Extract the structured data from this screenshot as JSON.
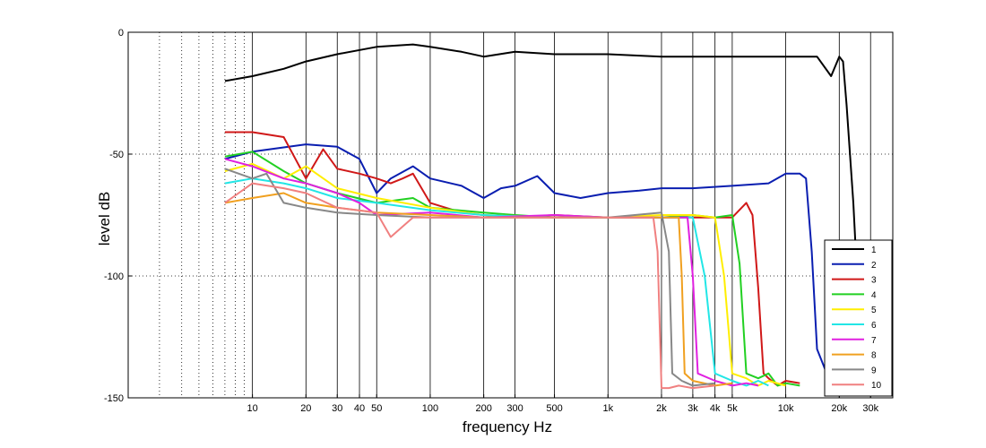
{
  "chart_data": {
    "type": "line",
    "xscale": "log",
    "xlim": [
      2,
      40000
    ],
    "ylim": [
      -150,
      0
    ],
    "xlabel": "frequency   Hz",
    "ylabel": "level dB",
    "xticks": [
      {
        "value": 10,
        "label": "10"
      },
      {
        "value": 20,
        "label": "20"
      },
      {
        "value": 30,
        "label": "30"
      },
      {
        "value": 40,
        "label": "40"
      },
      {
        "value": 50,
        "label": "50"
      },
      {
        "value": 100,
        "label": "100"
      },
      {
        "value": 200,
        "label": "200"
      },
      {
        "value": 300,
        "label": "300"
      },
      {
        "value": 500,
        "label": "500"
      },
      {
        "value": 1000,
        "label": "1k"
      },
      {
        "value": 2000,
        "label": "2k"
      },
      {
        "value": 3000,
        "label": "3k"
      },
      {
        "value": 4000,
        "label": "4k"
      },
      {
        "value": 5000,
        "label": "5k"
      },
      {
        "value": 10000,
        "label": "10k"
      },
      {
        "value": 20000,
        "label": "20k"
      },
      {
        "value": 30000,
        "label": "30k"
      }
    ],
    "xgrid_solid": [
      10,
      20,
      30,
      40,
      50,
      100,
      200,
      300,
      500,
      1000,
      2000,
      3000,
      4000,
      5000,
      10000,
      20000,
      30000
    ],
    "xgrid_dotted": [
      3,
      4,
      5,
      6,
      7,
      8,
      9
    ],
    "yticks": [
      {
        "value": 0,
        "label": "0"
      },
      {
        "value": -50,
        "label": "-50"
      },
      {
        "value": -100,
        "label": "-100"
      },
      {
        "value": -150,
        "label": "-150"
      }
    ],
    "ygrid_dotted": [
      -50,
      -100
    ],
    "grid": true,
    "legend": {
      "position": "bottom-right"
    },
    "series": [
      {
        "name": "1",
        "color": "#000000",
        "points": [
          [
            7,
            -20
          ],
          [
            10,
            -18
          ],
          [
            15,
            -15
          ],
          [
            20,
            -12
          ],
          [
            30,
            -9
          ],
          [
            50,
            -6
          ],
          [
            80,
            -5
          ],
          [
            100,
            -6
          ],
          [
            150,
            -8
          ],
          [
            200,
            -10
          ],
          [
            300,
            -8
          ],
          [
            500,
            -9
          ],
          [
            1000,
            -9
          ],
          [
            2000,
            -10
          ],
          [
            3000,
            -10
          ],
          [
            5000,
            -10
          ],
          [
            10000,
            -10
          ],
          [
            15000,
            -10
          ],
          [
            18000,
            -18
          ],
          [
            20000,
            -10
          ],
          [
            21000,
            -12
          ],
          [
            22000,
            -30
          ],
          [
            24000,
            -70
          ],
          [
            26000,
            -120
          ],
          [
            30000,
            -130
          ],
          [
            35000,
            -135
          ],
          [
            40000,
            -137
          ]
        ]
      },
      {
        "name": "2",
        "color": "#0a1eb0",
        "points": [
          [
            7,
            -52
          ],
          [
            10,
            -49
          ],
          [
            20,
            -46
          ],
          [
            30,
            -47
          ],
          [
            40,
            -52
          ],
          [
            50,
            -66
          ],
          [
            60,
            -60
          ],
          [
            80,
            -55
          ],
          [
            100,
            -60
          ],
          [
            150,
            -63
          ],
          [
            200,
            -68
          ],
          [
            250,
            -64
          ],
          [
            300,
            -63
          ],
          [
            400,
            -59
          ],
          [
            500,
            -66
          ],
          [
            700,
            -68
          ],
          [
            1000,
            -66
          ],
          [
            1500,
            -65
          ],
          [
            2000,
            -64
          ],
          [
            3000,
            -64
          ],
          [
            5000,
            -63
          ],
          [
            8000,
            -62
          ],
          [
            10000,
            -58
          ],
          [
            12000,
            -58
          ],
          [
            13000,
            -60
          ],
          [
            14000,
            -90
          ],
          [
            15000,
            -130
          ],
          [
            17000,
            -140
          ],
          [
            18000,
            -125
          ],
          [
            20000,
            -145
          ],
          [
            22000,
            -145
          ]
        ]
      },
      {
        "name": "3",
        "color": "#d01818",
        "points": [
          [
            7,
            -41
          ],
          [
            10,
            -41
          ],
          [
            15,
            -43
          ],
          [
            20,
            -60
          ],
          [
            25,
            -48
          ],
          [
            30,
            -56
          ],
          [
            40,
            -58
          ],
          [
            50,
            -60
          ],
          [
            60,
            -62
          ],
          [
            70,
            -60
          ],
          [
            80,
            -58
          ],
          [
            100,
            -70
          ],
          [
            150,
            -74
          ],
          [
            200,
            -75
          ],
          [
            300,
            -76
          ],
          [
            500,
            -75
          ],
          [
            1000,
            -76
          ],
          [
            2000,
            -76
          ],
          [
            3000,
            -76
          ],
          [
            5000,
            -76
          ],
          [
            6000,
            -70
          ],
          [
            6500,
            -75
          ],
          [
            7000,
            -105
          ],
          [
            7500,
            -140
          ],
          [
            8000,
            -142
          ],
          [
            9000,
            -145
          ],
          [
            10000,
            -143
          ],
          [
            12000,
            -144
          ]
        ]
      },
      {
        "name": "4",
        "color": "#22d022",
        "points": [
          [
            7,
            -51
          ],
          [
            10,
            -49
          ],
          [
            15,
            -57
          ],
          [
            20,
            -62
          ],
          [
            30,
            -66
          ],
          [
            50,
            -70
          ],
          [
            80,
            -68
          ],
          [
            100,
            -72
          ],
          [
            200,
            -74
          ],
          [
            300,
            -75
          ],
          [
            500,
            -76
          ],
          [
            1000,
            -76
          ],
          [
            2000,
            -76
          ],
          [
            3000,
            -75
          ],
          [
            4000,
            -76
          ],
          [
            5000,
            -75
          ],
          [
            5500,
            -95
          ],
          [
            6000,
            -140
          ],
          [
            7000,
            -142
          ],
          [
            8000,
            -140
          ],
          [
            9000,
            -145
          ],
          [
            10000,
            -144
          ],
          [
            12000,
            -145
          ]
        ]
      },
      {
        "name": "5",
        "color": "#ffee00",
        "points": [
          [
            7,
            -57
          ],
          [
            10,
            -54
          ],
          [
            15,
            -60
          ],
          [
            20,
            -55
          ],
          [
            30,
            -64
          ],
          [
            50,
            -68
          ],
          [
            100,
            -72
          ],
          [
            200,
            -75
          ],
          [
            500,
            -76
          ],
          [
            1000,
            -76
          ],
          [
            2000,
            -75
          ],
          [
            3000,
            -75
          ],
          [
            4000,
            -76
          ],
          [
            4500,
            -100
          ],
          [
            5000,
            -140
          ],
          [
            6000,
            -142
          ],
          [
            7000,
            -145
          ],
          [
            8000,
            -143
          ],
          [
            10000,
            -145
          ]
        ]
      },
      {
        "name": "6",
        "color": "#22e6e6",
        "points": [
          [
            7,
            -62
          ],
          [
            10,
            -60
          ],
          [
            15,
            -62
          ],
          [
            20,
            -64
          ],
          [
            30,
            -68
          ],
          [
            50,
            -70
          ],
          [
            100,
            -73
          ],
          [
            200,
            -75
          ],
          [
            500,
            -76
          ],
          [
            1000,
            -76
          ],
          [
            2000,
            -76
          ],
          [
            3000,
            -76
          ],
          [
            3500,
            -100
          ],
          [
            4000,
            -140
          ],
          [
            5000,
            -143
          ],
          [
            6000,
            -145
          ],
          [
            7000,
            -143
          ],
          [
            8000,
            -145
          ]
        ]
      },
      {
        "name": "7",
        "color": "#e020e0",
        "points": [
          [
            7,
            -52
          ],
          [
            10,
            -55
          ],
          [
            15,
            -60
          ],
          [
            20,
            -62
          ],
          [
            30,
            -66
          ],
          [
            40,
            -70
          ],
          [
            50,
            -75
          ],
          [
            100,
            -74
          ],
          [
            200,
            -76
          ],
          [
            500,
            -75
          ],
          [
            1000,
            -76
          ],
          [
            2000,
            -76
          ],
          [
            2800,
            -76
          ],
          [
            3000,
            -100
          ],
          [
            3200,
            -140
          ],
          [
            4000,
            -143
          ],
          [
            5000,
            -145
          ],
          [
            6000,
            -144
          ],
          [
            7000,
            -145
          ]
        ]
      },
      {
        "name": "8",
        "color": "#f0a020",
        "points": [
          [
            7,
            -70
          ],
          [
            10,
            -68
          ],
          [
            15,
            -66
          ],
          [
            20,
            -70
          ],
          [
            30,
            -72
          ],
          [
            50,
            -74
          ],
          [
            100,
            -75
          ],
          [
            200,
            -76
          ],
          [
            500,
            -76
          ],
          [
            1000,
            -76
          ],
          [
            2000,
            -76
          ],
          [
            2500,
            -76
          ],
          [
            2600,
            -100
          ],
          [
            2700,
            -140
          ],
          [
            3000,
            -143
          ],
          [
            4000,
            -145
          ],
          [
            5000,
            -144
          ]
        ]
      },
      {
        "name": "9",
        "color": "#888888",
        "points": [
          [
            7,
            -56
          ],
          [
            10,
            -60
          ],
          [
            12,
            -58
          ],
          [
            15,
            -70
          ],
          [
            20,
            -72
          ],
          [
            30,
            -74
          ],
          [
            50,
            -75
          ],
          [
            100,
            -76
          ],
          [
            200,
            -76
          ],
          [
            500,
            -76
          ],
          [
            1000,
            -76
          ],
          [
            2000,
            -74
          ],
          [
            2200,
            -90
          ],
          [
            2300,
            -140
          ],
          [
            2600,
            -143
          ],
          [
            3000,
            -145
          ],
          [
            4000,
            -144
          ]
        ]
      },
      {
        "name": "10",
        "color": "#f08080",
        "points": [
          [
            7,
            -70
          ],
          [
            10,
            -62
          ],
          [
            15,
            -64
          ],
          [
            20,
            -66
          ],
          [
            30,
            -72
          ],
          [
            50,
            -74
          ],
          [
            60,
            -84
          ],
          [
            80,
            -76
          ],
          [
            100,
            -76
          ],
          [
            200,
            -76
          ],
          [
            500,
            -76
          ],
          [
            1000,
            -76
          ],
          [
            1800,
            -76
          ],
          [
            1900,
            -90
          ],
          [
            2000,
            -146
          ],
          [
            2200,
            -146
          ],
          [
            2500,
            -145
          ],
          [
            3000,
            -146
          ],
          [
            4000,
            -145
          ]
        ]
      }
    ]
  }
}
